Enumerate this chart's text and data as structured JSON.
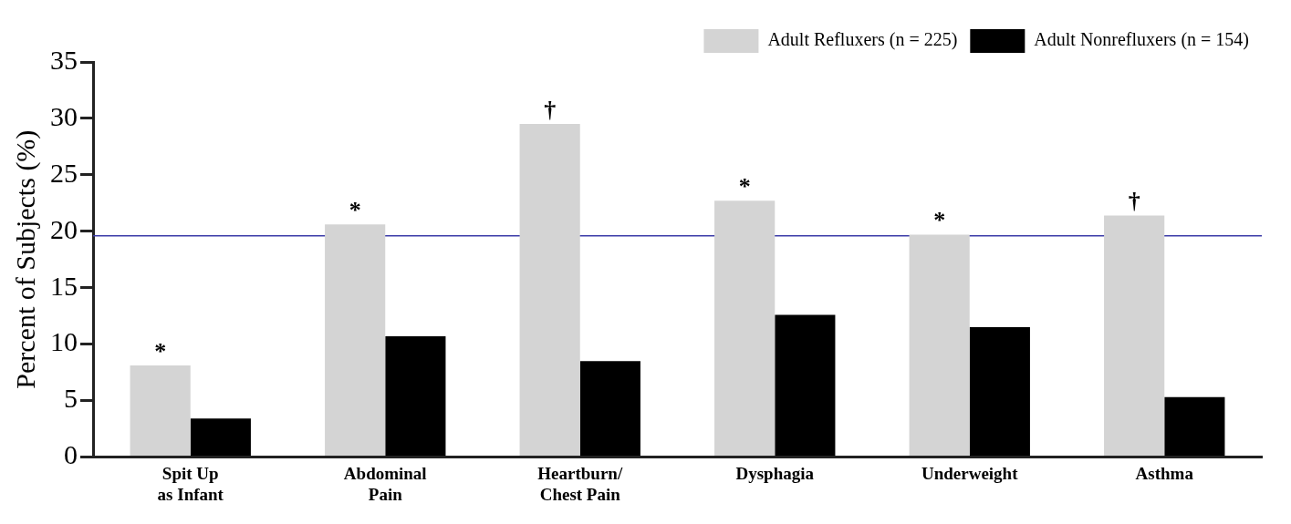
{
  "chart_data": {
    "type": "bar",
    "ylabel": "Percent of Subjects (%)",
    "categories": [
      "Spit Up\nas Infant",
      "Abdominal\nPain",
      "Heartburn/\nChest Pain",
      "Dysphagia",
      "Underweight",
      "Asthma"
    ],
    "series": [
      {
        "name": "Adult Refluxers (n = 225)",
        "color": "#d4d4d4",
        "values": [
          8.1,
          20.6,
          29.5,
          22.7,
          19.7,
          21.4
        ]
      },
      {
        "name": "Adult Nonrefluxers (n = 154)",
        "color": "#000000",
        "values": [
          3.4,
          10.7,
          8.5,
          12.6,
          11.5,
          5.3
        ]
      }
    ],
    "ylim": [
      0,
      35
    ],
    "yticks": [
      0,
      5,
      10,
      15,
      20,
      25,
      30,
      35
    ],
    "grid": false,
    "legend": "top right",
    "ref_lines": [
      {
        "axis": "y",
        "value": 19.6,
        "color": "#3c3ca8"
      }
    ],
    "annotations": [
      {
        "text": "*",
        "x": "Spit Up\nas Infant",
        "y": 8.1
      },
      {
        "text": "*",
        "x": "Abdominal\nPain",
        "y": 20.6
      },
      {
        "text": "†",
        "x": "Heartburn/\nChest Pain",
        "y": 29.5
      },
      {
        "text": "*",
        "x": "Dysphagia",
        "y": 22.7
      },
      {
        "text": "*",
        "x": "Underweight",
        "y": 19.7
      },
      {
        "text": "†",
        "x": "Asthma",
        "y": 21.4
      }
    ]
  }
}
